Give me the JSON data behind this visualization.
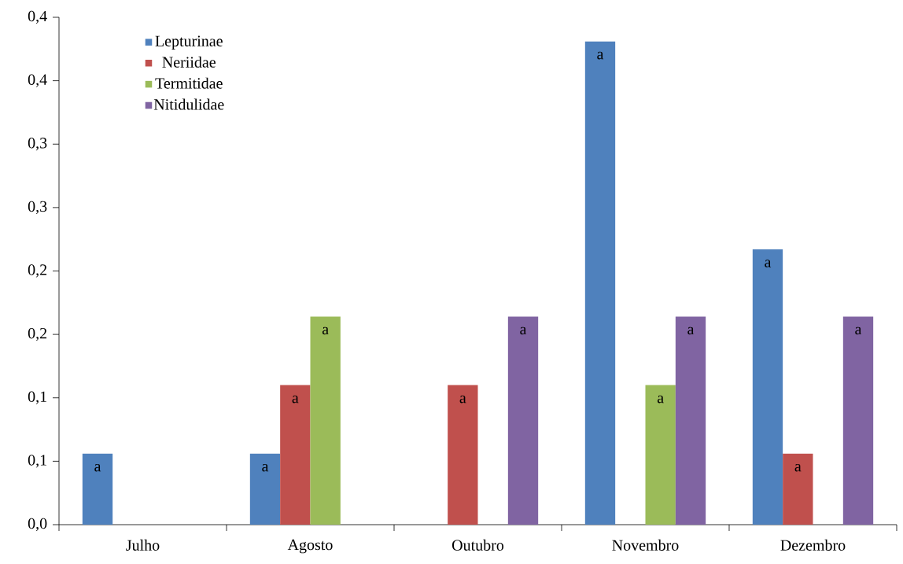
{
  "chart_data": {
    "type": "bar",
    "categories": [
      "Julho",
      "Agosto",
      "Outubro",
      "Novembro",
      "Dezembro"
    ],
    "series": [
      {
        "name": "Lepturinae",
        "color": "#4f81bd",
        "values": [
          0.056,
          0.056,
          null,
          0.381,
          0.217
        ],
        "value_labels": [
          "a",
          "a",
          null,
          "a",
          "a"
        ]
      },
      {
        "name": "Neriidae",
        "color": "#c0504d",
        "values": [
          null,
          0.11,
          0.11,
          null,
          0.056
        ],
        "value_labels": [
          null,
          "a",
          "a",
          null,
          "a"
        ]
      },
      {
        "name": "Termitidae",
        "color": "#9bbb59",
        "values": [
          null,
          0.164,
          null,
          0.11,
          null
        ],
        "value_labels": [
          null,
          "a",
          null,
          "a",
          null
        ]
      },
      {
        "name": "Nitidulidae",
        "color": "#8064a2",
        "values": [
          null,
          null,
          0.164,
          0.164,
          0.164
        ],
        "value_labels": [
          null,
          null,
          "a",
          "a",
          "a"
        ]
      }
    ],
    "ylim": [
      0,
      0.4
    ],
    "yticks": [
      {
        "value": 0,
        "label": "0,0"
      },
      {
        "value": 0.05,
        "label": "0,1"
      },
      {
        "value": 0.1,
        "label": "0,1"
      },
      {
        "value": 0.15,
        "label": "0,2"
      },
      {
        "value": 0.2,
        "label": "0,2"
      },
      {
        "value": 0.25,
        "label": "0,3"
      },
      {
        "value": 0.3,
        "label": "0,3"
      },
      {
        "value": 0.35,
        "label": "0,4"
      },
      {
        "value": 0.4,
        "label": "0,4"
      }
    ],
    "legend": "top left",
    "grid": false
  }
}
